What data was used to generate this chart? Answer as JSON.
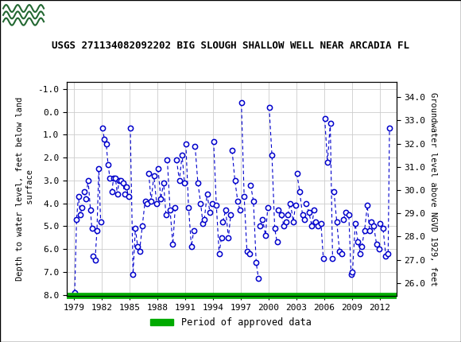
{
  "title": "USGS 271134082092202 BIG SLOUGH SHALLOW WELL NEAR ARCADIA FL",
  "ylabel_left": "Depth to water level, feet below land\n surface",
  "ylabel_right": "Groundwater level above NGVD 1929, feet",
  "ylim_left": [
    8.05,
    -1.3
  ],
  "ylim_right": [
    25.45,
    34.65
  ],
  "xlim": [
    1978.2,
    2013.8
  ],
  "xticks": [
    1979,
    1982,
    1985,
    1988,
    1991,
    1994,
    1997,
    2000,
    2003,
    2006,
    2009,
    2012
  ],
  "yticks_left": [
    -1.0,
    0.0,
    1.0,
    2.0,
    3.0,
    4.0,
    5.0,
    6.0,
    7.0,
    8.0
  ],
  "yticks_right": [
    34.0,
    33.0,
    32.0,
    31.0,
    30.0,
    29.0,
    28.0,
    27.0,
    26.0
  ],
  "marker_color": "#0000cc",
  "line_color": "#0000cc",
  "header_bg": "#236832",
  "legend_label": "Period of approved data",
  "legend_color": "#00aa00",
  "background_color": "#ffffff",
  "groups": [
    {
      "x": [
        1979.05,
        1979.25,
        1979.45,
        1979.65,
        1979.85
      ],
      "y": [
        7.9,
        4.7,
        3.7,
        4.5,
        4.2
      ]
    },
    {
      "x": [
        1980.05,
        1980.25,
        1980.5,
        1980.75,
        1980.9
      ],
      "y": [
        3.5,
        3.8,
        3.0,
        4.3,
        5.1
      ]
    },
    {
      "x": [
        1981.05,
        1981.25,
        1981.45,
        1981.65,
        1981.85
      ],
      "y": [
        6.3,
        6.5,
        5.2,
        2.5,
        4.8
      ]
    },
    {
      "x": [
        1982.05,
        1982.25,
        1982.45,
        1982.65,
        1982.85
      ],
      "y": [
        0.7,
        1.2,
        1.4,
        2.3,
        2.9
      ]
    },
    {
      "x": [
        1983.05,
        1983.25,
        1983.45,
        1983.65,
        1983.85
      ],
      "y": [
        3.5,
        2.9,
        2.9,
        3.6,
        3.0
      ]
    },
    {
      "x": [
        1984.05,
        1984.25,
        1984.45,
        1984.65,
        1984.85
      ],
      "y": [
        3.0,
        3.1,
        3.6,
        3.3,
        3.7
      ]
    },
    {
      "x": [
        1985.05,
        1985.35,
        1985.6,
        1985.85
      ],
      "y": [
        0.7,
        7.1,
        5.1,
        5.9
      ]
    },
    {
      "x": [
        1986.05,
        1986.35,
        1986.65,
        1986.9
      ],
      "y": [
        6.1,
        5.0,
        3.9,
        4.0
      ]
    },
    {
      "x": [
        1987.05,
        1987.3,
        1987.6,
        1987.9
      ],
      "y": [
        2.7,
        3.9,
        2.8,
        4.0
      ]
    },
    {
      "x": [
        1988.05,
        1988.35,
        1988.65,
        1988.9
      ],
      "y": [
        2.5,
        3.8,
        3.1,
        4.5
      ]
    },
    {
      "x": [
        1989.05,
        1989.35,
        1989.65,
        1989.9
      ],
      "y": [
        2.1,
        4.3,
        5.8,
        4.2
      ]
    },
    {
      "x": [
        1990.05,
        1990.35,
        1990.65,
        1990.9
      ],
      "y": [
        2.1,
        3.0,
        1.9,
        3.1
      ]
    },
    {
      "x": [
        1991.05,
        1991.35,
        1991.65,
        1991.9
      ],
      "y": [
        1.4,
        4.2,
        5.9,
        5.2
      ]
    },
    {
      "x": [
        1992.05,
        1992.35,
        1992.65,
        1992.9
      ],
      "y": [
        1.5,
        3.1,
        4.0,
        4.9
      ]
    },
    {
      "x": [
        1993.05,
        1993.35,
        1993.65,
        1993.9
      ],
      "y": [
        4.7,
        3.6,
        4.4,
        4.0
      ]
    },
    {
      "x": [
        1994.05,
        1994.35,
        1994.65,
        1994.9
      ],
      "y": [
        1.3,
        4.1,
        6.2,
        5.5
      ]
    },
    {
      "x": [
        1995.05,
        1995.35,
        1995.65,
        1995.9
      ],
      "y": [
        4.8,
        4.3,
        5.5,
        4.5
      ]
    },
    {
      "x": [
        1996.05,
        1996.35,
        1996.65,
        1996.9
      ],
      "y": [
        1.7,
        3.0,
        3.9,
        4.3
      ]
    },
    {
      "x": [
        1997.05,
        1997.35,
        1997.65,
        1997.9
      ],
      "y": [
        -0.4,
        3.7,
        6.1,
        6.2
      ]
    },
    {
      "x": [
        1998.05,
        1998.35,
        1998.65,
        1998.9
      ],
      "y": [
        3.2,
        3.9,
        6.6,
        7.3
      ]
    },
    {
      "x": [
        1999.05,
        1999.35,
        1999.65,
        1999.9
      ],
      "y": [
        5.0,
        4.7,
        5.4,
        4.2
      ]
    },
    {
      "x": [
        2000.05,
        2000.35,
        2000.65,
        2000.9
      ],
      "y": [
        -0.2,
        1.9,
        5.1,
        5.7
      ]
    },
    {
      "x": [
        2001.05,
        2001.35,
        2001.65,
        2001.9
      ],
      "y": [
        4.3,
        4.5,
        5.0,
        4.8
      ]
    },
    {
      "x": [
        2002.05,
        2002.35,
        2002.65,
        2002.9
      ],
      "y": [
        4.5,
        4.0,
        4.8,
        4.1
      ]
    },
    {
      "x": [
        2003.05,
        2003.35,
        2003.65,
        2003.9
      ],
      "y": [
        2.7,
        3.5,
        4.5,
        4.7
      ]
    },
    {
      "x": [
        2004.05,
        2004.35,
        2004.65,
        2004.9
      ],
      "y": [
        4.0,
        4.4,
        5.0,
        4.3
      ]
    },
    {
      "x": [
        2005.05,
        2005.35,
        2005.65,
        2005.9
      ],
      "y": [
        4.8,
        5.0,
        4.9,
        6.4
      ]
    },
    {
      "x": [
        2006.05,
        2006.35,
        2006.65,
        2006.9
      ],
      "y": [
        0.3,
        2.2,
        0.5,
        6.4
      ]
    },
    {
      "x": [
        2007.05,
        2007.35,
        2007.65,
        2007.9
      ],
      "y": [
        3.5,
        4.8,
        6.1,
        6.2
      ]
    },
    {
      "x": [
        2008.05,
        2008.35,
        2008.65,
        2008.9
      ],
      "y": [
        4.7,
        4.4,
        4.5,
        7.1
      ]
    },
    {
      "x": [
        2009.05,
        2009.35,
        2009.65,
        2009.9
      ],
      "y": [
        7.0,
        4.9,
        5.7,
        6.2
      ]
    },
    {
      "x": [
        2010.05,
        2010.35,
        2010.65,
        2010.9
      ],
      "y": [
        5.9,
        5.2,
        4.1,
        5.2
      ]
    },
    {
      "x": [
        2011.05,
        2011.35,
        2011.65,
        2011.9
      ],
      "y": [
        4.8,
        5.0,
        5.8,
        6.0
      ]
    },
    {
      "x": [
        2012.05,
        2012.35,
        2012.65,
        2012.9,
        2013.05
      ],
      "y": [
        4.9,
        5.1,
        6.3,
        6.2,
        0.7
      ]
    }
  ]
}
